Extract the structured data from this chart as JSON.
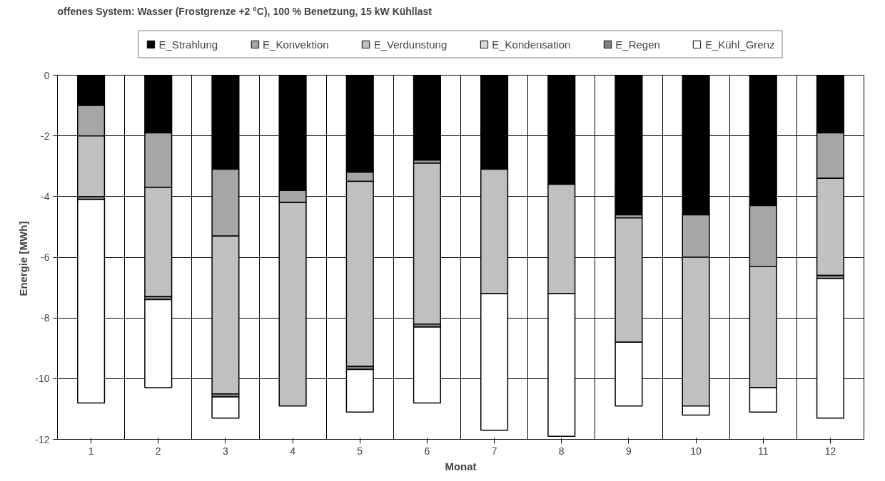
{
  "chart_data": {
    "type": "bar",
    "title": "offenes System:  Wasser (Frostgrenze +2 °C),  100 % Benetzung,  15 kW Kühllast",
    "xlabel": "Monat",
    "ylabel": "Energie  [MWh]",
    "categories": [
      "1",
      "2",
      "3",
      "4",
      "5",
      "6",
      "7",
      "8",
      "9",
      "10",
      "11",
      "12"
    ],
    "stacked": true,
    "legend": "top",
    "grid": true,
    "ylim": [
      -12,
      0
    ],
    "yticks": [
      0,
      -2,
      -4,
      -6,
      -8,
      -10,
      -12
    ],
    "series": [
      {
        "name": "E_Strahlung",
        "color": "#000000",
        "values": [
          -1.0,
          -1.9,
          -3.1,
          -3.8,
          -3.2,
          -2.8,
          -3.1,
          -3.6,
          -4.6,
          -4.6,
          -4.3,
          -1.9
        ]
      },
      {
        "name": "E_Konvektion",
        "color": "#a6a6a6",
        "values": [
          -1.0,
          -1.8,
          -2.2,
          -0.4,
          -0.3,
          -0.1,
          0,
          0,
          -0.1,
          -1.4,
          -2.0,
          -1.5
        ]
      },
      {
        "name": "E_Verdunstung",
        "color": "#c0c0c0",
        "values": [
          -2.0,
          -3.6,
          -5.2,
          -6.7,
          -6.1,
          -5.3,
          -4.1,
          -3.6,
          -4.1,
          -4.9,
          -4.0,
          -3.2
        ]
      },
      {
        "name": "E_Kondensation",
        "color": "#d9d9d9",
        "values": [
          0,
          0,
          0,
          0,
          0,
          0,
          0,
          0,
          0,
          0,
          0,
          0
        ]
      },
      {
        "name": "E_Regen",
        "color": "#808080",
        "values": [
          -0.1,
          -0.1,
          -0.1,
          0,
          -0.1,
          -0.1,
          0,
          0,
          0,
          0,
          0,
          -0.1
        ]
      },
      {
        "name": "E_Kühl_Grenz",
        "color": "#ffffff",
        "values": [
          -6.7,
          -2.9,
          -0.7,
          0,
          -1.4,
          -2.5,
          -4.5,
          -4.7,
          -2.1,
          -0.3,
          -0.8,
          -4.6
        ]
      }
    ]
  }
}
